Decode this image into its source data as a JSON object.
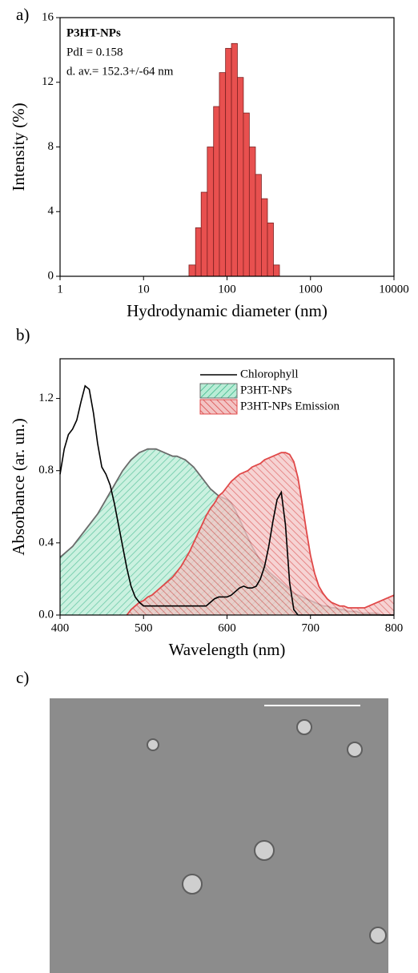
{
  "chart_data": [
    {
      "type": "histogram",
      "label": "a)",
      "xlabel": "Hydrodynamic diameter (nm)",
      "ylabel": "Intensity (%)",
      "annotations": [
        "P3HT-NPs",
        "PdI = 0.158",
        "d. av.= 152.3+/-64 nm"
      ],
      "xscale": "log",
      "xlim": [
        1,
        10000
      ],
      "xticks": [
        1,
        10,
        100,
        1000,
        10000
      ],
      "ylim": [
        0,
        16
      ],
      "yticks": [
        0,
        4,
        8,
        12,
        16
      ],
      "bins": [
        35,
        42,
        49,
        58,
        69,
        81,
        96,
        113,
        133,
        157,
        185,
        219,
        258,
        305,
        360,
        425
      ],
      "values": [
        0.7,
        3.0,
        5.2,
        8.0,
        10.5,
        12.6,
        14.1,
        14.4,
        12.3,
        10.1,
        8.0,
        6.3,
        4.8,
        3.3,
        0.7
      ],
      "color": "#e8504f"
    },
    {
      "type": "line",
      "label": "b)",
      "xlabel": "Wavelength (nm)",
      "ylabel": "Absorbance (ar. un.)",
      "xlim": [
        400,
        800
      ],
      "xticks": [
        400,
        500,
        600,
        700,
        800
      ],
      "ylim": [
        0,
        1.42
      ],
      "yticks": [
        {
          "value": 0,
          "label": "0.0"
        },
        0.4,
        0.8,
        1.2
      ],
      "legend": "upper right",
      "x": [
        400,
        405,
        410,
        415,
        420,
        425,
        430,
        435,
        440,
        445,
        450,
        455,
        460,
        465,
        470,
        475,
        480,
        485,
        490,
        495,
        500,
        505,
        510,
        515,
        520,
        525,
        530,
        535,
        540,
        545,
        550,
        555,
        560,
        565,
        570,
        575,
        580,
        585,
        590,
        595,
        600,
        605,
        610,
        615,
        620,
        625,
        630,
        635,
        640,
        645,
        650,
        655,
        660,
        665,
        670,
        675,
        680,
        685,
        690,
        695,
        700,
        705,
        710,
        715,
        720,
        725,
        730,
        735,
        740,
        745,
        750,
        755,
        760,
        765,
        770,
        775,
        780,
        785,
        790,
        795,
        800
      ],
      "series": [
        {
          "name": "Chlorophyll",
          "color": "#000000",
          "style": "line",
          "values": [
            0.78,
            0.92,
            1.0,
            1.03,
            1.08,
            1.18,
            1.27,
            1.25,
            1.12,
            0.95,
            0.82,
            0.78,
            0.72,
            0.62,
            0.5,
            0.38,
            0.26,
            0.16,
            0.1,
            0.07,
            0.05,
            0.05,
            0.05,
            0.05,
            0.05,
            0.05,
            0.05,
            0.05,
            0.05,
            0.05,
            0.05,
            0.05,
            0.05,
            0.05,
            0.05,
            0.05,
            0.07,
            0.09,
            0.1,
            0.1,
            0.1,
            0.11,
            0.13,
            0.15,
            0.16,
            0.15,
            0.15,
            0.16,
            0.2,
            0.27,
            0.38,
            0.52,
            0.64,
            0.68,
            0.5,
            0.18,
            0.03,
            0,
            0,
            0,
            0,
            0,
            0,
            0,
            0,
            0,
            0,
            0,
            0,
            0,
            0,
            0,
            0,
            0,
            0,
            0,
            0,
            0,
            0,
            0,
            0
          ]
        },
        {
          "name": "P3HT-NPs",
          "color": "#3cb88a",
          "style": "area",
          "values": [
            0.32,
            0.34,
            0.36,
            0.38,
            0.41,
            0.44,
            0.47,
            0.5,
            0.53,
            0.56,
            0.6,
            0.64,
            0.68,
            0.72,
            0.76,
            0.8,
            0.83,
            0.86,
            0.88,
            0.9,
            0.91,
            0.92,
            0.92,
            0.92,
            0.91,
            0.9,
            0.89,
            0.88,
            0.88,
            0.87,
            0.86,
            0.84,
            0.82,
            0.79,
            0.76,
            0.73,
            0.7,
            0.68,
            0.66,
            0.65,
            0.64,
            0.62,
            0.58,
            0.53,
            0.48,
            0.43,
            0.38,
            0.34,
            0.3,
            0.27,
            0.24,
            0.22,
            0.2,
            0.18,
            0.16,
            0.14,
            0.12,
            0.11,
            0.1,
            0.09,
            0.08,
            0.07,
            0.06,
            0.05,
            0.05,
            0.04,
            0.04,
            0.03,
            0.03,
            0.02,
            0.02,
            0.02,
            0.01,
            0.01,
            0.01,
            0.01,
            0.01,
            0,
            0,
            0,
            0
          ]
        },
        {
          "name": "P3HT-NPs Emission",
          "color": "#e04848",
          "style": "area",
          "values": [
            null,
            null,
            null,
            null,
            null,
            null,
            null,
            null,
            null,
            null,
            null,
            null,
            null,
            null,
            null,
            null,
            0,
            0.03,
            0.05,
            0.07,
            0.08,
            0.1,
            0.11,
            0.13,
            0.15,
            0.17,
            0.19,
            0.21,
            0.24,
            0.27,
            0.31,
            0.35,
            0.4,
            0.45,
            0.5,
            0.55,
            0.59,
            0.62,
            0.66,
            0.68,
            0.71,
            0.74,
            0.76,
            0.78,
            0.79,
            0.8,
            0.82,
            0.83,
            0.84,
            0.86,
            0.87,
            0.88,
            0.89,
            0.9,
            0.9,
            0.89,
            0.85,
            0.76,
            0.62,
            0.47,
            0.33,
            0.23,
            0.16,
            0.12,
            0.09,
            0.07,
            0.06,
            0.05,
            0.05,
            0.04,
            0.04,
            0.04,
            0.04,
            0.04,
            0.05,
            0.06,
            0.07,
            0.08,
            0.09,
            0.1,
            0.11
          ]
        }
      ]
    },
    {
      "type": "image",
      "label": "c)"
    }
  ]
}
